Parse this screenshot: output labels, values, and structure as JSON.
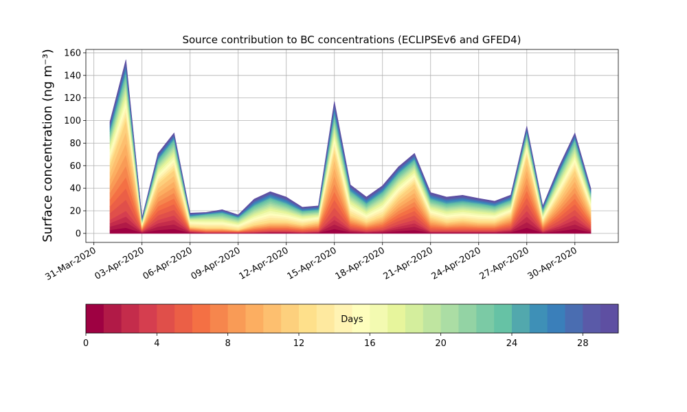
{
  "chart_data": {
    "type": "stacked_area",
    "title": "Source contribution to BC concentrations (ECLIPSEv6 and GFED4)",
    "y_label": "Surface concentration (ng m⁻³)",
    "x": [
      "2020-04-01",
      "2020-04-02",
      "2020-04-03",
      "2020-04-04",
      "2020-04-05",
      "2020-04-06",
      "2020-04-07",
      "2020-04-08",
      "2020-04-09",
      "2020-04-10",
      "2020-04-11",
      "2020-04-12",
      "2020-04-13",
      "2020-04-14",
      "2020-04-15",
      "2020-04-16",
      "2020-04-17",
      "2020-04-18",
      "2020-04-19",
      "2020-04-20",
      "2020-04-21",
      "2020-04-22",
      "2020-04-23",
      "2020-04-24",
      "2020-04-25",
      "2020-04-26",
      "2020-04-27",
      "2020-04-28",
      "2020-04-29",
      "2020-04-30",
      "2020-05-01"
    ],
    "xlim": [
      "2020-03-30T12:00",
      "2020-05-02T17:00"
    ],
    "xticks": [
      {
        "value": "2020-03-31",
        "label": "31-Mar-2020"
      },
      {
        "value": "2020-04-03",
        "label": "03-Apr-2020"
      },
      {
        "value": "2020-04-06",
        "label": "06-Apr-2020"
      },
      {
        "value": "2020-04-09",
        "label": "09-Apr-2020"
      },
      {
        "value": "2020-04-12",
        "label": "12-Apr-2020"
      },
      {
        "value": "2020-04-15",
        "label": "15-Apr-2020"
      },
      {
        "value": "2020-04-18",
        "label": "18-Apr-2020"
      },
      {
        "value": "2020-04-21",
        "label": "21-Apr-2020"
      },
      {
        "value": "2020-04-24",
        "label": "24-Apr-2020"
      },
      {
        "value": "2020-04-27",
        "label": "27-Apr-2020"
      },
      {
        "value": "2020-04-30",
        "label": "30-Apr-2020"
      }
    ],
    "ylim": [
      -8,
      163
    ],
    "yticks": [
      0,
      20,
      40,
      60,
      80,
      100,
      120,
      140,
      160
    ],
    "grid": true,
    "colorbar": {
      "label": "Days",
      "lim": [
        0,
        30
      ],
      "ticks": [
        0,
        4,
        8,
        12,
        16,
        20,
        24,
        28
      ]
    },
    "series": [
      {
        "color": "#9e0142",
        "values": [
          3,
          5,
          0.5,
          3,
          4,
          0.5,
          0.2,
          0.2,
          0.2,
          0.3,
          0.5,
          0.5,
          0.3,
          0.5,
          4,
          1,
          0.5,
          0.8,
          2,
          3,
          0.5,
          0.5,
          0.5,
          0.5,
          0.5,
          1,
          5,
          0.5,
          2,
          4,
          1
        ]
      },
      {
        "color": "#b11a47",
        "values": [
          3,
          5,
          0.5,
          3,
          4,
          0.5,
          0.2,
          0.2,
          0.2,
          0.3,
          0.5,
          0.5,
          0.3,
          0.5,
          4,
          1,
          0.5,
          0.8,
          2,
          3,
          0.5,
          0.5,
          0.5,
          0.5,
          0.5,
          1,
          5,
          0.5,
          2,
          4,
          1
        ]
      },
      {
        "color": "#c42c4b",
        "values": [
          3,
          5,
          0.5,
          3,
          4,
          0.5,
          0.2,
          0.2,
          0.2,
          0.3,
          0.5,
          0.5,
          0.3,
          0.5,
          4,
          1,
          0.5,
          0.8,
          2,
          3,
          0.5,
          0.5,
          0.5,
          0.5,
          0.5,
          1,
          5,
          0.5,
          2,
          4,
          1
        ]
      },
      {
        "color": "#d53e4f",
        "values": [
          3,
          5,
          0.5,
          3,
          4,
          0.5,
          0.2,
          0.2,
          0.2,
          0.3,
          0.5,
          0.5,
          0.3,
          0.5,
          4,
          1,
          0.5,
          0.8,
          2,
          3,
          0.5,
          0.5,
          0.5,
          0.5,
          0.5,
          1,
          5,
          0.5,
          2,
          4,
          1
        ]
      },
      {
        "color": "#e04f4a",
        "values": [
          6,
          10,
          0.5,
          4,
          5,
          0.5,
          0.5,
          0.5,
          0.3,
          0.8,
          1,
          1,
          0.8,
          1,
          7,
          1.5,
          1,
          1.5,
          3,
          4,
          1.5,
          1,
          1.2,
          1,
          1,
          1.5,
          6,
          1,
          3,
          5,
          2
        ]
      },
      {
        "color": "#eb5f46",
        "values": [
          6,
          10,
          0.5,
          4,
          5,
          0.5,
          0.5,
          0.5,
          0.3,
          0.8,
          1,
          1,
          0.8,
          1,
          7,
          1.5,
          1,
          1.5,
          3,
          4,
          1.5,
          1,
          1.2,
          1,
          1,
          1.5,
          6,
          1,
          3,
          5,
          2
        ]
      },
      {
        "color": "#f47044",
        "values": [
          6,
          10,
          0.5,
          4,
          5,
          0.5,
          0.5,
          0.5,
          0.3,
          0.8,
          1,
          1,
          0.8,
          1,
          7,
          1.5,
          1,
          1.5,
          3,
          4,
          1.5,
          1,
          1.2,
          1,
          1,
          1.5,
          6,
          1,
          3,
          5,
          2
        ]
      },
      {
        "color": "#f6864d",
        "values": [
          6,
          10,
          0.5,
          4,
          5,
          0.5,
          0.5,
          0.5,
          0.3,
          0.8,
          1,
          1,
          0.8,
          1,
          7,
          1.5,
          1,
          1.5,
          3,
          4,
          1.5,
          1,
          1.2,
          1,
          1,
          1.5,
          6,
          1,
          3,
          5,
          2
        ]
      },
      {
        "color": "#f99b56",
        "values": [
          6,
          10,
          0.5,
          4,
          5,
          0.5,
          0.5,
          0.5,
          0.3,
          0.8,
          1,
          1,
          0.8,
          1,
          7,
          1.5,
          1,
          1.5,
          3,
          4,
          1.5,
          1,
          1.2,
          1,
          1,
          1.5,
          6,
          1,
          3,
          5,
          2
        ]
      },
      {
        "color": "#fcae61",
        "values": [
          6,
          10,
          0.5,
          4,
          5,
          0.5,
          0.5,
          0.5,
          0.3,
          0.8,
          1,
          1,
          0.8,
          1,
          7,
          1.5,
          1,
          1.5,
          3,
          4,
          1.5,
          1,
          1.2,
          1,
          1,
          1.5,
          6,
          1,
          3,
          5,
          2
        ]
      },
      {
        "color": "#fdbf6f",
        "values": [
          6,
          10,
          0.5,
          4,
          5,
          0.5,
          0.5,
          0.5,
          0.3,
          0.8,
          1,
          1,
          0.8,
          1,
          7,
          1.5,
          1,
          1.5,
          3,
          4,
          1.5,
          1,
          1.2,
          1,
          1,
          1.5,
          6,
          1,
          3,
          5,
          2
        ]
      },
      {
        "color": "#fdd07d",
        "values": [
          6,
          10,
          0.5,
          4,
          5,
          0.5,
          0.5,
          0.5,
          0.3,
          0.8,
          1,
          1,
          0.8,
          1,
          7,
          1.5,
          1,
          1.5,
          3,
          4,
          1.5,
          1,
          1.2,
          1,
          1,
          1.5,
          6,
          1,
          3,
          5,
          2
        ]
      },
      {
        "color": "#fee08b",
        "values": [
          3,
          4,
          0.5,
          2,
          2.5,
          1,
          1.2,
          1.2,
          1,
          1.5,
          2,
          1.5,
          1.2,
          1,
          3,
          2,
          1.5,
          2,
          2,
          2,
          1.5,
          1.5,
          1.5,
          1.5,
          1.3,
          1.2,
          2,
          1,
          2,
          2.5,
          1.5
        ]
      },
      {
        "color": "#fee99f",
        "values": [
          3,
          4,
          0.5,
          2,
          2.5,
          1,
          1.2,
          1.2,
          1,
          1.5,
          2,
          1.5,
          1.2,
          1,
          3,
          2,
          1.5,
          2,
          2,
          2,
          1.5,
          1.5,
          1.5,
          1.5,
          1.3,
          1.2,
          2,
          1,
          2,
          2.5,
          1.5
        ]
      },
      {
        "color": "#fff3b3",
        "values": [
          3,
          4,
          0.5,
          2,
          2.5,
          1,
          1.2,
          1.2,
          1,
          1.5,
          2,
          1.5,
          1.2,
          1,
          3,
          2,
          1.5,
          2,
          2,
          2,
          1.5,
          1.5,
          1.5,
          1.5,
          1.3,
          1.2,
          2,
          1,
          2,
          2.5,
          1.5
        ]
      },
      {
        "color": "#fefebd",
        "values": [
          3,
          4,
          0.5,
          2,
          2.5,
          1,
          1.2,
          1.2,
          1,
          1.5,
          2,
          1.5,
          1.2,
          1,
          3,
          2,
          1.5,
          2,
          2,
          2,
          1.5,
          1.5,
          1.5,
          1.5,
          1.3,
          1.2,
          2,
          1,
          2,
          2.5,
          1.5
        ]
      },
      {
        "color": "#f3fab1",
        "values": [
          3,
          4,
          0.5,
          2,
          2.5,
          1,
          1.2,
          1.2,
          1,
          1.5,
          2,
          1.5,
          1.2,
          1,
          3,
          2,
          1.5,
          2,
          2,
          2,
          1.5,
          1.5,
          1.5,
          1.5,
          1.3,
          1.2,
          2,
          1,
          2,
          2.5,
          1.5
        ]
      },
      {
        "color": "#e7f59c",
        "values": [
          3,
          4,
          0.5,
          2,
          2.5,
          1,
          1.2,
          1.2,
          1,
          1.5,
          2,
          1.5,
          1.2,
          1,
          3,
          2,
          1.5,
          2,
          2,
          2,
          1.5,
          1.5,
          1.5,
          1.5,
          1.3,
          1.2,
          2,
          1,
          2,
          2.5,
          1.5
        ]
      },
      {
        "color": "#d4ee9d",
        "values": [
          2,
          3,
          0.5,
          1.5,
          2,
          0.5,
          0.8,
          1,
          0.8,
          1.3,
          1.5,
          1.2,
          0.8,
          0.8,
          2.5,
          1.5,
          1.2,
          1.5,
          1.5,
          1.5,
          1.2,
          1.2,
          1.2,
          1.2,
          1,
          1,
          1.5,
          0.8,
          1.5,
          2,
          1
        ]
      },
      {
        "color": "#bfe5a0",
        "values": [
          2,
          3,
          0.5,
          1.5,
          2,
          0.5,
          0.8,
          1,
          0.8,
          1.3,
          1.5,
          1.2,
          0.8,
          0.8,
          2.5,
          1.5,
          1.2,
          1.5,
          1.5,
          1.5,
          1.2,
          1.2,
          1.2,
          1.2,
          1,
          1,
          1.5,
          0.8,
          1.5,
          2,
          1
        ]
      },
      {
        "color": "#abdda4",
        "values": [
          2,
          3,
          0.5,
          1.5,
          2,
          0.5,
          0.8,
          1,
          0.8,
          1.3,
          1.5,
          1.2,
          0.8,
          0.8,
          2.5,
          1.5,
          1.2,
          1.5,
          1.5,
          1.5,
          1.2,
          1.2,
          1.2,
          1.2,
          1,
          1,
          1.5,
          0.8,
          1.5,
          2,
          1
        ]
      },
      {
        "color": "#93d3a4",
        "values": [
          2,
          3,
          0.5,
          1.5,
          2,
          0.5,
          0.8,
          1,
          0.8,
          1.3,
          1.5,
          1.2,
          0.8,
          0.8,
          2.5,
          1.5,
          1.2,
          1.5,
          1.5,
          1.5,
          1.2,
          1.2,
          1.2,
          1.2,
          1,
          1,
          1.5,
          0.8,
          1.5,
          2,
          1
        ]
      },
      {
        "color": "#7bcaa5",
        "values": [
          2,
          3,
          0.5,
          1.5,
          2,
          0.5,
          0.8,
          1,
          0.8,
          1.3,
          1.5,
          1.2,
          0.8,
          0.8,
          2.5,
          1.5,
          1.2,
          1.5,
          1.5,
          1.5,
          1.2,
          1.2,
          1.2,
          1.2,
          1,
          1,
          1.5,
          0.8,
          1.5,
          2,
          1
        ]
      },
      {
        "color": "#66c2a5",
        "values": [
          2,
          3,
          0.5,
          1.5,
          2,
          0.5,
          0.8,
          1,
          0.8,
          1.3,
          1.5,
          1.2,
          0.8,
          0.8,
          2.5,
          1.5,
          1.2,
          1.5,
          1.5,
          1.5,
          1.2,
          1.2,
          1.2,
          1.2,
          1,
          1,
          1.5,
          0.8,
          1.5,
          2,
          1
        ]
      },
      {
        "color": "#52a8ad",
        "values": [
          1.5,
          2,
          0.3,
          1,
          1,
          0.5,
          0.3,
          0.5,
          0.4,
          1,
          1,
          1,
          0.6,
          0.6,
          2,
          1,
          1,
          1,
          1,
          1,
          1,
          1,
          1,
          0.8,
          0.8,
          0.8,
          1,
          0.6,
          1,
          1,
          0.8
        ]
      },
      {
        "color": "#3e90b7",
        "values": [
          1.5,
          2,
          0.3,
          1,
          1,
          0.5,
          0.3,
          0.5,
          0.4,
          1,
          1,
          1,
          0.6,
          0.6,
          2,
          1,
          1,
          1,
          1,
          1,
          1,
          1,
          1,
          0.8,
          0.8,
          0.8,
          1,
          0.6,
          1,
          1,
          0.8
        ]
      },
      {
        "color": "#3a7fba",
        "values": [
          1.5,
          2,
          0.3,
          1,
          1,
          0.5,
          0.3,
          0.5,
          0.4,
          1,
          1,
          1,
          0.6,
          0.6,
          2,
          1,
          1,
          1,
          1,
          1,
          1,
          1,
          1,
          0.8,
          0.8,
          0.8,
          1,
          0.6,
          1,
          1,
          0.8
        ]
      },
      {
        "color": "#4a6db1",
        "values": [
          1.5,
          2,
          0.3,
          1,
          1,
          0.5,
          0.3,
          0.5,
          0.4,
          1,
          1,
          1,
          0.6,
          0.6,
          2,
          1,
          1,
          1,
          1,
          1,
          1,
          1,
          1,
          0.8,
          0.8,
          0.8,
          1,
          0.6,
          1,
          1,
          0.8
        ]
      },
      {
        "color": "#5a5aa8",
        "values": [
          1.5,
          2,
          0.3,
          1,
          1,
          0.5,
          0.3,
          0.5,
          0.4,
          1,
          1,
          1,
          0.6,
          0.6,
          2,
          1,
          1,
          1,
          1,
          1,
          1,
          1,
          1,
          0.8,
          0.8,
          0.8,
          1,
          0.6,
          1,
          1,
          0.8
        ]
      },
      {
        "color": "#5e4fa2",
        "values": [
          1.5,
          2,
          0.3,
          1,
          1,
          0.5,
          0.3,
          0.5,
          0.4,
          1,
          1,
          1,
          0.6,
          0.6,
          2,
          1,
          1,
          1,
          1,
          1,
          1,
          1,
          1,
          0.8,
          0.8,
          0.8,
          1,
          0.6,
          1,
          1,
          0.8
        ]
      }
    ]
  }
}
